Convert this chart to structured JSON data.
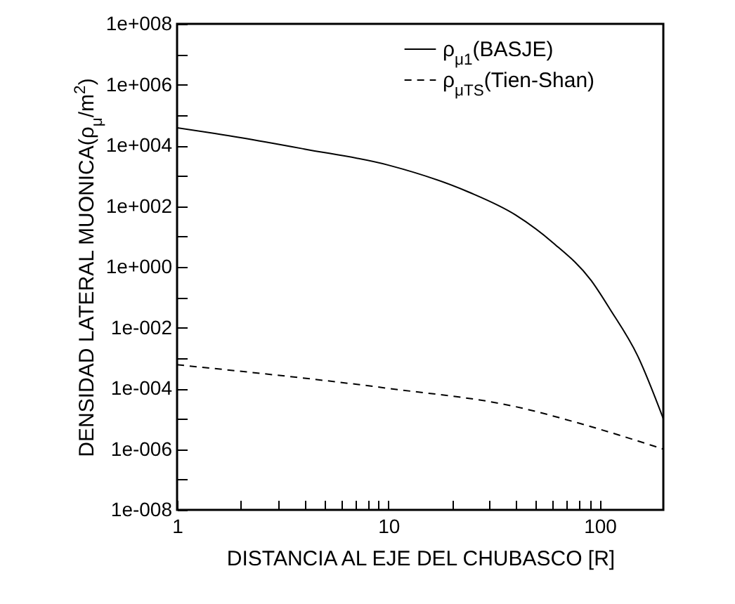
{
  "chart_data": {
    "type": "line",
    "xlabel": "DISTANCIA AL EJE DEL CHUBASCO [R]",
    "ylabel": "DENSIDAD LATERAL MUONICA(ρ$_{μ}$/m$^{2}$)",
    "log": "xy",
    "grid": false,
    "legend": "top right",
    "marker": "none",
    "xlim": [
      1,
      200
    ],
    "xticks": [
      1,
      {
        "value": 2,
        "label": null
      },
      {
        "value": 3,
        "label": null
      },
      {
        "value": 4,
        "label": null
      },
      {
        "value": 5,
        "label": null
      },
      {
        "value": 6,
        "label": null
      },
      {
        "value": 7,
        "label": null
      },
      {
        "value": 8,
        "label": null
      },
      {
        "value": 9,
        "label": null
      },
      10,
      {
        "value": 20,
        "label": null
      },
      {
        "value": 30,
        "label": null
      },
      {
        "value": 40,
        "label": null
      },
      {
        "value": 50,
        "label": null
      },
      {
        "value": 60,
        "label": null
      },
      {
        "value": 70,
        "label": null
      },
      {
        "value": 80,
        "label": null
      },
      {
        "value": 90,
        "label": null
      },
      100
    ],
    "ylim": [
      1e-08,
      100000000.0
    ],
    "yticks": [
      {
        "value": 1e-08,
        "label": "1e-008"
      },
      {
        "value": 1e-07,
        "label": null
      },
      {
        "value": 1e-06,
        "label": "1e-006"
      },
      {
        "value": 1e-05,
        "label": null
      },
      {
        "value": 0.0001,
        "label": "1e-004"
      },
      {
        "value": 0.001,
        "label": null
      },
      {
        "value": 0.01,
        "label": "1e-002"
      },
      {
        "value": 0.1,
        "label": null
      },
      {
        "value": 1,
        "label": "1e+000"
      },
      {
        "value": 10,
        "label": null
      },
      {
        "value": 100,
        "label": "1e+002"
      },
      {
        "value": 1000,
        "label": null
      },
      {
        "value": 10000,
        "label": "1e+004"
      },
      {
        "value": 100000,
        "label": null
      },
      {
        "value": 1000000,
        "label": "1e+006"
      },
      {
        "value": 10000000,
        "label": null
      },
      {
        "value": 100000000,
        "label": "1e+008"
      }
    ],
    "series": [
      {
        "name": "ρ$_{μ1}$(BASJE)",
        "color": "#000000",
        "line_style": "solid",
        "x": [
          1,
          2,
          4,
          10,
          24,
          40,
          60,
          91,
          112,
          151,
          200
        ],
        "values": [
          38000,
          18000,
          7600,
          2240,
          290,
          51,
          6.3,
          0.36,
          0.04,
          0.0012,
          1e-05
        ]
      },
      {
        "name": "ρ$_{μTS}$(Tien-Shan)",
        "color": "#000000",
        "line_style": "dashed",
        "x": [
          1,
          10,
          40,
          87,
          200
        ],
        "values": [
          0.0006,
          0.0001,
          2.5e-05,
          6e-06,
          1e-06
        ]
      }
    ]
  }
}
